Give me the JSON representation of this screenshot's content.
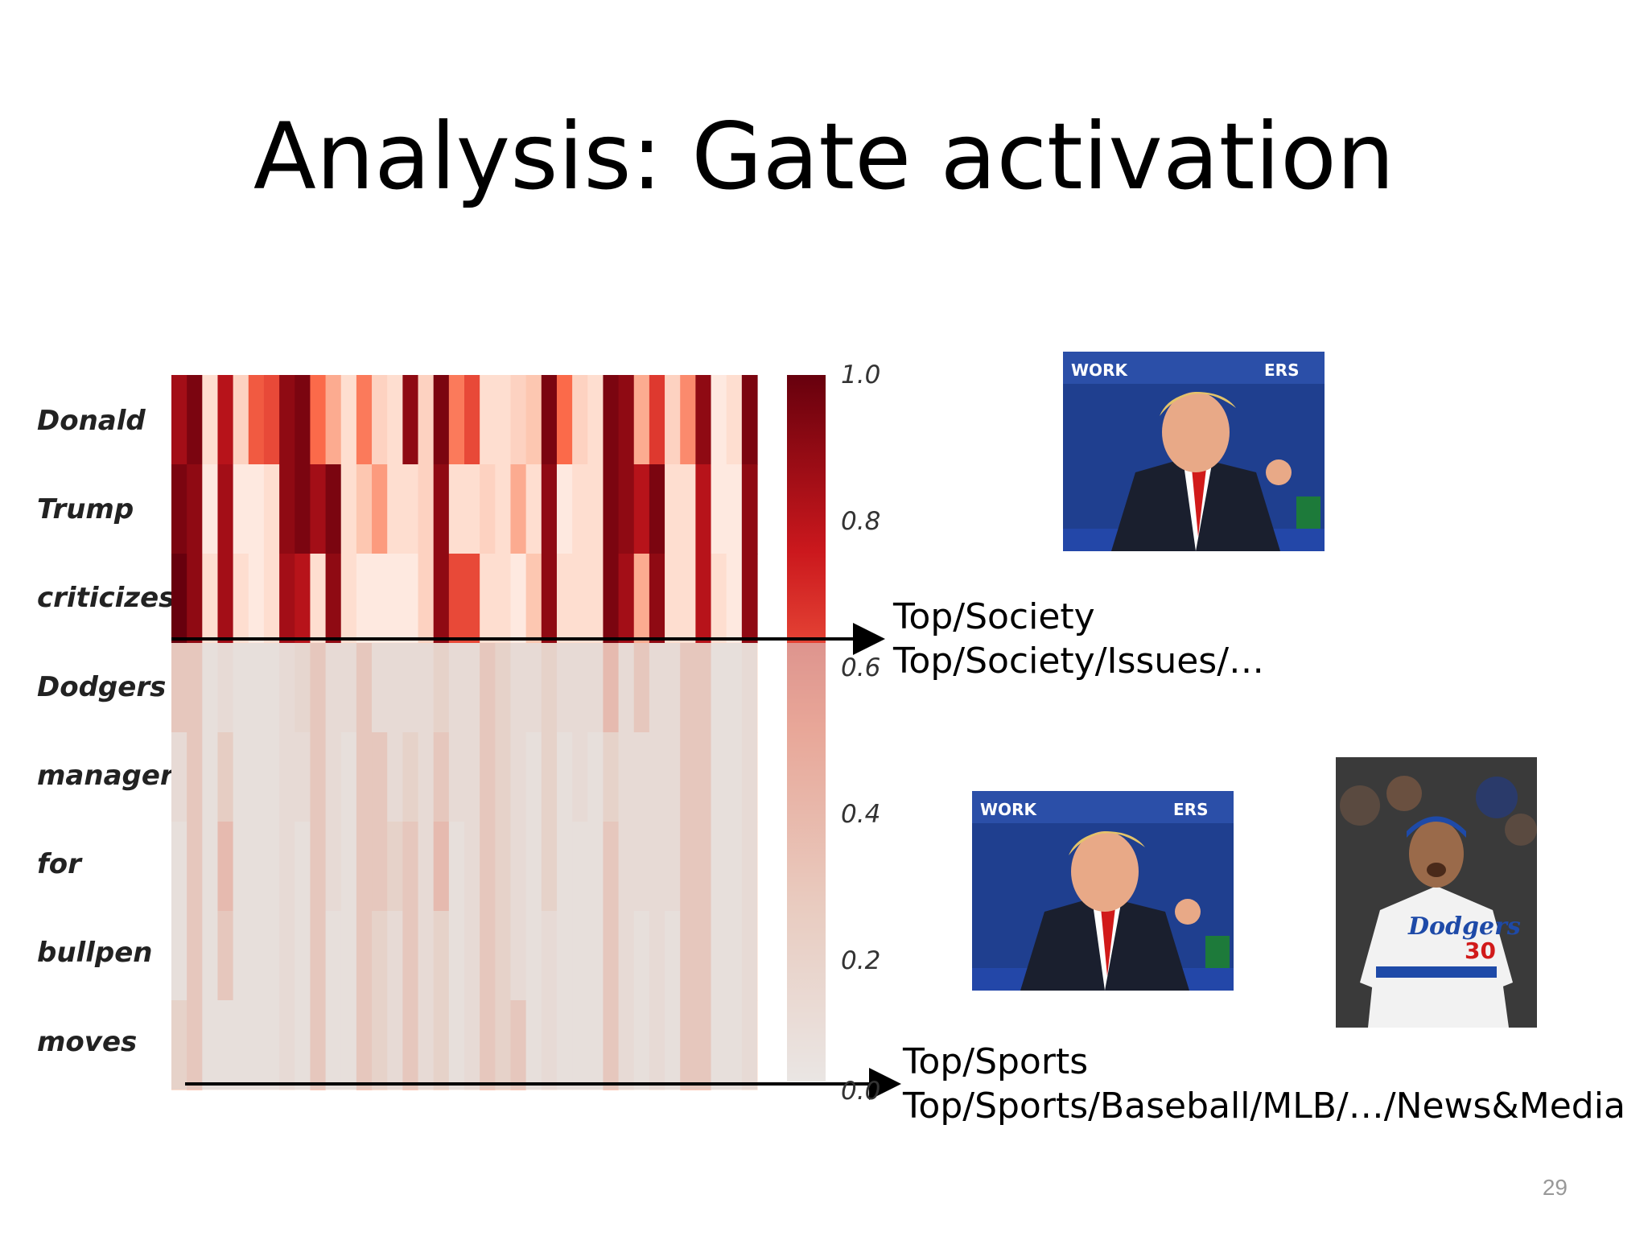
{
  "slide": {
    "title": "Analysis: Gate activation",
    "page_number": "29"
  },
  "topics": {
    "society_1": "Top/Society",
    "society_2": "Top/Society/Issues/…",
    "sports_1": "Top/Sports",
    "sports_2": "Top/Sports/Baseball/MLB/…/News&Media"
  },
  "photos": {
    "person_a": "person-pointing-photo",
    "person_b": "baseball-manager-photo",
    "jersey_text": "Dodgers",
    "jersey_number": "30"
  },
  "colors": {
    "low": "#fff5f0",
    "high": "#67000d",
    "overlay": "#d9d9d9",
    "arrow": "#000000"
  },
  "chart_data": {
    "type": "heatmap",
    "rows": [
      "Donald",
      "Trump",
      "criticizes",
      "Dodgers",
      "manager",
      "for",
      "bullpen",
      "moves"
    ],
    "colorbar_ticks": [
      "1.0",
      "0.8",
      "0.6",
      "0.4",
      "0.2",
      "0.0"
    ],
    "colorbar_range": [
      0,
      1
    ],
    "highlighted_rows": [
      0,
      1,
      2
    ],
    "column_count": 38,
    "values": [
      [
        0.85,
        0.95,
        0.1,
        0.8,
        0.15,
        0.55,
        0.6,
        0.9,
        0.95,
        0.5,
        0.3,
        0.1,
        0.45,
        0.15,
        0.1,
        0.9,
        0.15,
        0.95,
        0.45,
        0.6,
        0.1,
        0.1,
        0.15,
        0.2,
        0.95,
        0.5,
        0.15,
        0.1,
        0.95,
        0.9,
        0.3,
        0.65,
        0.15,
        0.4,
        0.9,
        0.05,
        0.1,
        0.95
      ],
      [
        0.95,
        0.9,
        0.05,
        0.85,
        0.05,
        0.05,
        0.1,
        0.9,
        0.95,
        0.85,
        0.95,
        0.1,
        0.2,
        0.35,
        0.1,
        0.1,
        0.15,
        0.9,
        0.1,
        0.1,
        0.15,
        0.1,
        0.3,
        0.1,
        0.9,
        0.05,
        0.1,
        0.1,
        0.95,
        0.9,
        0.8,
        0.95,
        0.1,
        0.1,
        0.8,
        0.05,
        0.05,
        0.9
      ],
      [
        1.0,
        0.9,
        0.1,
        0.85,
        0.1,
        0.05,
        0.1,
        0.85,
        0.8,
        0.1,
        0.9,
        0.1,
        0.05,
        0.05,
        0.05,
        0.05,
        0.15,
        0.9,
        0.6,
        0.6,
        0.1,
        0.1,
        0.05,
        0.2,
        0.9,
        0.1,
        0.1,
        0.1,
        0.95,
        0.85,
        0.3,
        0.9,
        0.1,
        0.1,
        0.8,
        0.1,
        0.05,
        0.9
      ],
      [
        0.3,
        0.3,
        0.05,
        0.1,
        0.05,
        0.05,
        0.05,
        0.1,
        0.15,
        0.3,
        0.1,
        0.1,
        0.3,
        0.1,
        0.1,
        0.1,
        0.1,
        0.2,
        0.1,
        0.1,
        0.3,
        0.2,
        0.1,
        0.1,
        0.2,
        0.1,
        0.1,
        0.1,
        0.4,
        0.1,
        0.3,
        0.1,
        0.1,
        0.3,
        0.3,
        0.05,
        0.05,
        0.1
      ],
      [
        0.1,
        0.3,
        0.05,
        0.25,
        0.05,
        0.05,
        0.05,
        0.1,
        0.1,
        0.3,
        0.1,
        0.05,
        0.3,
        0.3,
        0.1,
        0.2,
        0.1,
        0.3,
        0.1,
        0.1,
        0.3,
        0.2,
        0.1,
        0.05,
        0.2,
        0.05,
        0.1,
        0.05,
        0.2,
        0.1,
        0.1,
        0.1,
        0.1,
        0.3,
        0.3,
        0.05,
        0.05,
        0.1
      ],
      [
        0.05,
        0.3,
        0.05,
        0.4,
        0.05,
        0.05,
        0.05,
        0.1,
        0.05,
        0.3,
        0.1,
        0.05,
        0.3,
        0.3,
        0.2,
        0.3,
        0.1,
        0.4,
        0.05,
        0.1,
        0.3,
        0.2,
        0.1,
        0.05,
        0.2,
        0.05,
        0.05,
        0.05,
        0.3,
        0.1,
        0.1,
        0.1,
        0.1,
        0.3,
        0.3,
        0.05,
        0.05,
        0.1
      ],
      [
        0.05,
        0.3,
        0.05,
        0.3,
        0.05,
        0.05,
        0.05,
        0.1,
        0.05,
        0.3,
        0.05,
        0.05,
        0.3,
        0.2,
        0.1,
        0.3,
        0.1,
        0.2,
        0.05,
        0.1,
        0.3,
        0.2,
        0.1,
        0.05,
        0.1,
        0.05,
        0.05,
        0.05,
        0.3,
        0.1,
        0.05,
        0.1,
        0.05,
        0.3,
        0.3,
        0.05,
        0.05,
        0.1
      ],
      [
        0.2,
        0.3,
        0.05,
        0.05,
        0.05,
        0.05,
        0.05,
        0.1,
        0.05,
        0.3,
        0.05,
        0.05,
        0.3,
        0.2,
        0.1,
        0.3,
        0.1,
        0.2,
        0.05,
        0.1,
        0.3,
        0.2,
        0.3,
        0.05,
        0.1,
        0.05,
        0.05,
        0.05,
        0.3,
        0.1,
        0.05,
        0.1,
        0.05,
        0.3,
        0.3,
        0.05,
        0.05,
        0.1
      ]
    ]
  }
}
